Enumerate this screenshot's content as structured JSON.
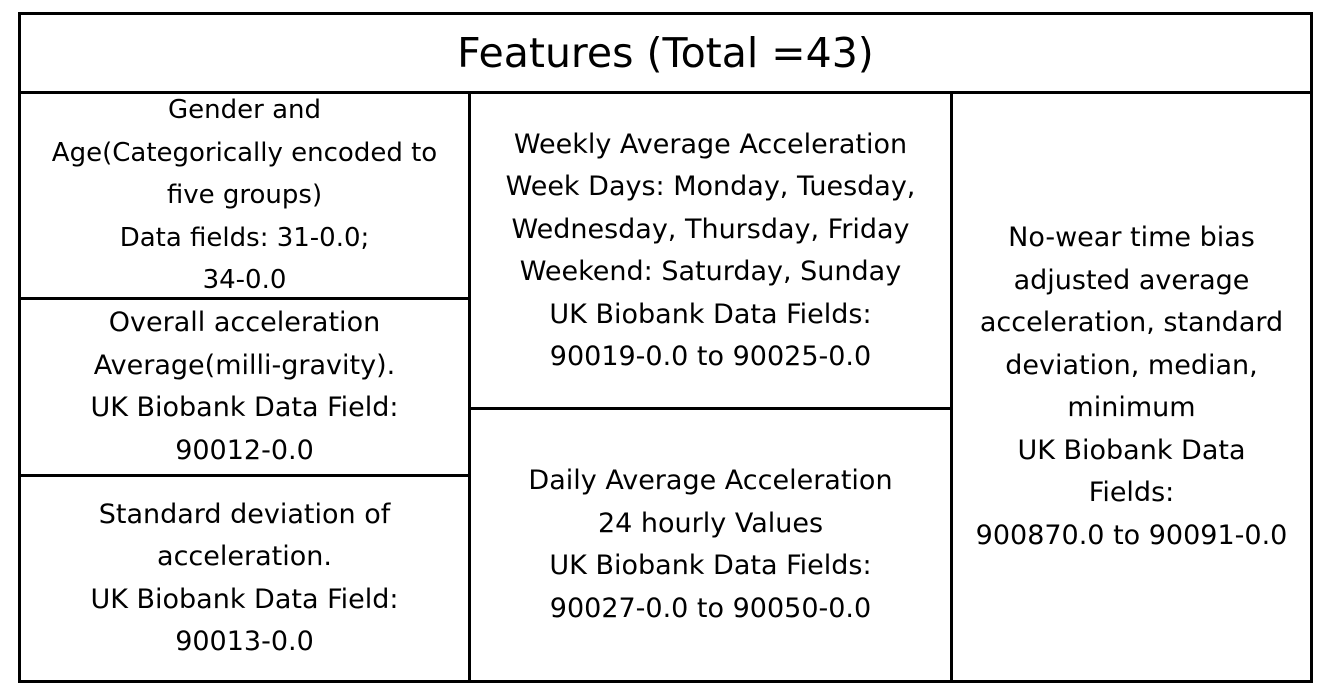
{
  "title": "Features (Total =43)",
  "cells": {
    "gender_age": {
      "lines": [
        "Gender and",
        "Age(Categorically encoded to",
        "five groups)",
        "Data fields: 31-0.0;",
        "34-0.0"
      ]
    },
    "overall_acceleration": {
      "lines": [
        "Overall acceleration",
        "Average(milli-gravity).",
        "UK Biobank Data Field:",
        "90012-0.0"
      ]
    },
    "std_acceleration": {
      "lines": [
        "Standard deviation of",
        "acceleration.",
        "UK Biobank Data Field:",
        "90013-0.0"
      ]
    },
    "weekly_average": {
      "lines": [
        "Weekly Average Acceleration",
        "Week Days: Monday, Tuesday,",
        "Wednesday, Thursday, Friday",
        "Weekend: Saturday, Sunday",
        "UK Biobank Data Fields:",
        "90019-0.0 to 90025-0.0"
      ]
    },
    "daily_average": {
      "lines": [
        "Daily Average Acceleration",
        "24 hourly Values",
        "UK Biobank Data Fields:",
        "90027-0.0 to 90050-0.0"
      ]
    },
    "no_wear_bias": {
      "lines": [
        "No-wear time bias",
        "adjusted average",
        "acceleration, standard",
        "deviation, median,",
        "minimum",
        "UK Biobank Data",
        "Fields:",
        "900870.0 to 90091-0.0"
      ]
    }
  }
}
